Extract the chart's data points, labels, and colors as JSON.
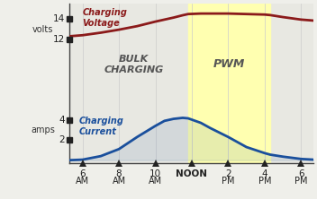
{
  "background_color": "#efefea",
  "plot_bg_color": "#efefea",
  "x_ticks": [
    6,
    8,
    10,
    12,
    14,
    16,
    18
  ],
  "x_tick_labels_line1": [
    "6",
    "8",
    "10",
    "NOON",
    "2",
    "4",
    "6"
  ],
  "x_tick_labels_line2": [
    "AM",
    "AM",
    "AM",
    "",
    "PM",
    "PM",
    "PM"
  ],
  "xlim": [
    5.3,
    18.7
  ],
  "ylim": [
    -0.3,
    15.5
  ],
  "voltage_color": "#8b1a1a",
  "current_color": "#1a4f9c",
  "pwm_fill_color": "#ffffb0",
  "pwm_start": 11.8,
  "pwm_end": 16.3,
  "voltage_x": [
    5.3,
    6,
    7,
    8,
    9,
    10,
    11,
    11.5,
    11.8,
    12.5,
    14,
    15,
    16,
    16.3,
    17,
    18,
    18.7
  ],
  "voltage_y": [
    12.3,
    12.4,
    12.65,
    12.95,
    13.3,
    13.75,
    14.15,
    14.38,
    14.5,
    14.55,
    14.55,
    14.5,
    14.45,
    14.4,
    14.2,
    13.95,
    13.85
  ],
  "current_x": [
    5.3,
    6,
    7,
    8,
    9,
    10,
    10.5,
    11,
    11.5,
    11.8,
    12.5,
    13,
    14,
    15,
    16,
    16.3,
    17,
    18,
    18.7
  ],
  "current_y": [
    0.0,
    0.05,
    0.4,
    1.1,
    2.3,
    3.4,
    3.9,
    4.1,
    4.2,
    4.15,
    3.7,
    3.2,
    2.3,
    1.3,
    0.7,
    0.55,
    0.35,
    0.12,
    0.05
  ],
  "ytick_vals": [
    14,
    12,
    4,
    2
  ],
  "ytick_labels": [
    "14",
    "12",
    "4",
    "2"
  ],
  "volts_y": 13.0,
  "amps_y": 3.0,
  "charging_voltage_label": "Charging\nVoltage",
  "charging_current_label": "Charging\nCurrent",
  "bulk_charging_label": "BULK\nCHARGING",
  "pwm_label": "PWM"
}
